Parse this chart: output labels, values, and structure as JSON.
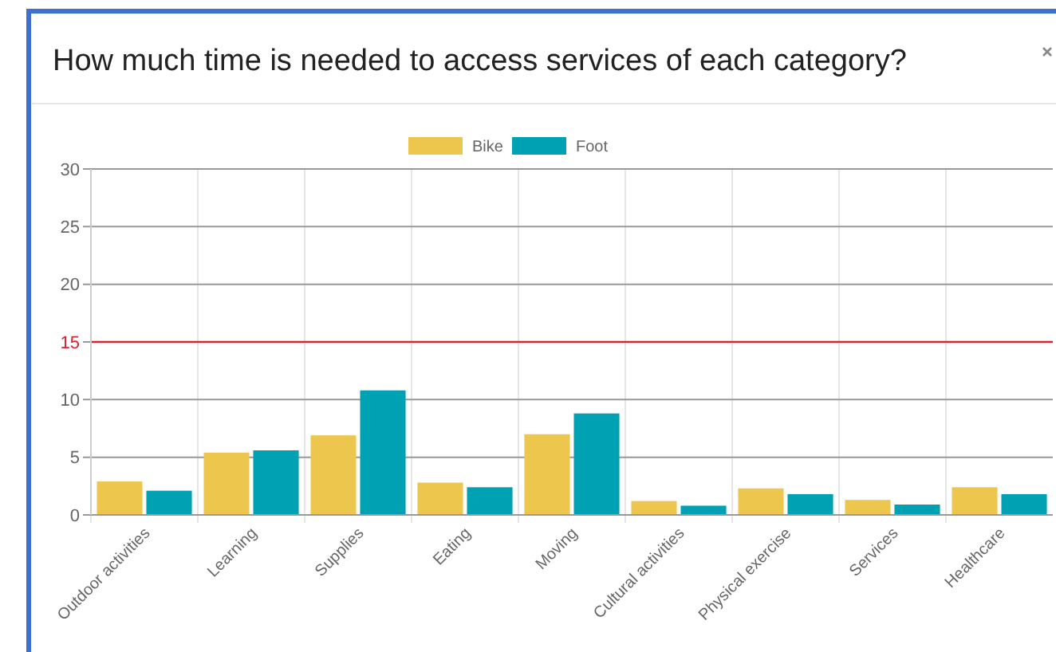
{
  "chart_data": {
    "type": "bar",
    "title": "How much time is needed to access services of each category?",
    "categories": [
      "Outdoor activities",
      "Learning",
      "Supplies",
      "Eating",
      "Moving",
      "Cultural activities",
      "Physical exercise",
      "Services",
      "Healthcare"
    ],
    "series": [
      {
        "name": "Bike",
        "color": "#ecc64d",
        "values": [
          2.9,
          5.4,
          6.9,
          2.8,
          7.0,
          1.2,
          2.3,
          1.3,
          2.4
        ]
      },
      {
        "name": "Foot",
        "color": "#00a1b2",
        "values": [
          2.1,
          5.6,
          10.8,
          2.4,
          8.8,
          0.8,
          1.8,
          0.9,
          1.8
        ]
      }
    ],
    "ylim": [
      0,
      30
    ],
    "yticks": [
      0,
      5,
      10,
      15,
      20,
      25,
      30
    ],
    "grid": true,
    "legend": "top",
    "ref_lines": [
      {
        "axis": "y",
        "value": 15,
        "color": "#d9232f"
      }
    ]
  }
}
